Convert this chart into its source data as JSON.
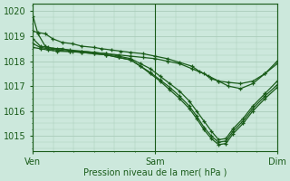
{
  "bg_color": "#cce8dc",
  "grid_color": "#aaccba",
  "line_color": "#1a5c1a",
  "xlabel": "Pression niveau de la mer( hPa )",
  "xtick_labels": [
    "Ven",
    "Sam",
    "Dim"
  ],
  "xtick_positions": [
    0,
    0.5,
    1.0
  ],
  "ylim": [
    1014.4,
    1020.3
  ],
  "yticks": [
    1015,
    1016,
    1017,
    1018,
    1019,
    1020
  ],
  "series": [
    {
      "x": [
        0,
        0.02,
        0.05,
        0.08,
        0.12,
        0.16,
        0.2,
        0.25,
        0.3,
        0.35,
        0.4,
        0.45,
        0.5,
        0.55,
        0.6,
        0.65,
        0.7,
        0.73,
        0.76,
        0.8,
        0.85,
        0.9,
        0.95,
        1.0
      ],
      "y": [
        1019.8,
        1019.1,
        1018.6,
        1018.5,
        1018.5,
        1018.4,
        1018.4,
        1018.35,
        1018.3,
        1018.25,
        1018.2,
        1018.15,
        1018.1,
        1018.0,
        1017.9,
        1017.7,
        1017.5,
        1017.3,
        1017.2,
        1017.15,
        1017.1,
        1017.2,
        1017.5,
        1018.0
      ]
    },
    {
      "x": [
        0,
        0.02,
        0.05,
        0.08,
        0.12,
        0.16,
        0.2,
        0.25,
        0.28,
        0.32,
        0.36,
        0.4,
        0.45,
        0.5,
        0.55,
        0.6,
        0.65,
        0.68,
        0.72,
        0.76,
        0.8,
        0.85,
        0.9,
        0.95,
        1.0
      ],
      "y": [
        1019.2,
        1019.15,
        1019.1,
        1018.9,
        1018.75,
        1018.7,
        1018.6,
        1018.55,
        1018.5,
        1018.45,
        1018.4,
        1018.35,
        1018.3,
        1018.2,
        1018.1,
        1017.95,
        1017.8,
        1017.6,
        1017.4,
        1017.2,
        1017.0,
        1016.9,
        1017.1,
        1017.5,
        1017.9
      ]
    },
    {
      "x": [
        0,
        0.03,
        0.06,
        0.1,
        0.15,
        0.2,
        0.25,
        0.3,
        0.35,
        0.4,
        0.44,
        0.48,
        0.52,
        0.56,
        0.6,
        0.64,
        0.67,
        0.7,
        0.73,
        0.76,
        0.79,
        0.82,
        0.86,
        0.9,
        0.95,
        1.0
      ],
      "y": [
        1018.9,
        1018.6,
        1018.55,
        1018.5,
        1018.45,
        1018.4,
        1018.35,
        1018.3,
        1018.2,
        1018.1,
        1017.9,
        1017.7,
        1017.4,
        1017.1,
        1016.8,
        1016.4,
        1016.0,
        1015.6,
        1015.2,
        1014.85,
        1014.9,
        1015.3,
        1015.7,
        1016.2,
        1016.7,
        1017.2
      ]
    },
    {
      "x": [
        0,
        0.03,
        0.06,
        0.1,
        0.15,
        0.2,
        0.25,
        0.3,
        0.35,
        0.4,
        0.44,
        0.48,
        0.52,
        0.56,
        0.6,
        0.64,
        0.67,
        0.7,
        0.73,
        0.76,
        0.79,
        0.82,
        0.86,
        0.9,
        0.95,
        1.0
      ],
      "y": [
        1018.7,
        1018.55,
        1018.5,
        1018.45,
        1018.4,
        1018.35,
        1018.3,
        1018.25,
        1018.15,
        1018.05,
        1017.8,
        1017.55,
        1017.25,
        1016.95,
        1016.6,
        1016.2,
        1015.8,
        1015.35,
        1015.0,
        1014.75,
        1014.8,
        1015.2,
        1015.6,
        1016.1,
        1016.6,
        1017.05
      ]
    },
    {
      "x": [
        0,
        0.03,
        0.06,
        0.1,
        0.15,
        0.2,
        0.25,
        0.3,
        0.35,
        0.4,
        0.44,
        0.48,
        0.52,
        0.56,
        0.6,
        0.64,
        0.67,
        0.7,
        0.73,
        0.76,
        0.79,
        0.82,
        0.86,
        0.9,
        0.95,
        1.0
      ],
      "y": [
        1018.55,
        1018.5,
        1018.45,
        1018.4,
        1018.38,
        1018.35,
        1018.3,
        1018.25,
        1018.15,
        1018.05,
        1017.8,
        1017.5,
        1017.2,
        1016.85,
        1016.5,
        1016.1,
        1015.7,
        1015.25,
        1014.9,
        1014.65,
        1014.7,
        1015.1,
        1015.5,
        1016.0,
        1016.5,
        1016.95
      ]
    }
  ]
}
